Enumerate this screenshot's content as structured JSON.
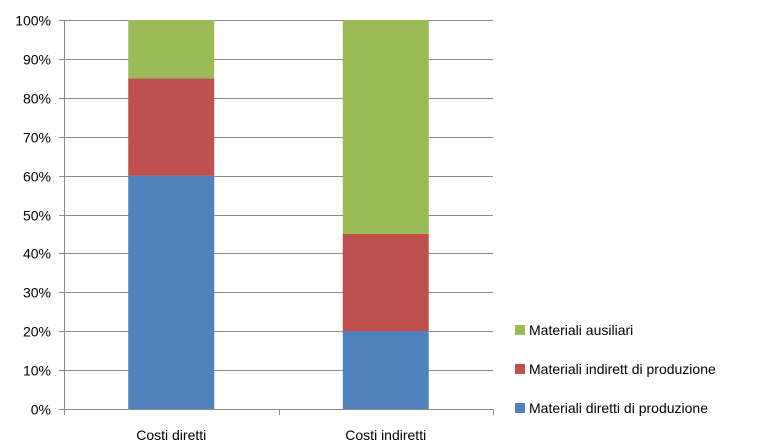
{
  "chart_data": {
    "type": "bar",
    "stacked": true,
    "categories": [
      "Costi diretti",
      "Costi indiretti"
    ],
    "series": [
      {
        "name": "Materiali diretti di produzione",
        "values": [
          60,
          20
        ],
        "color": "#4F81BD"
      },
      {
        "name": "Materiali indirett di produzione",
        "values": [
          25,
          25
        ],
        "color": "#C0504D"
      },
      {
        "name": "Materiali ausiliari",
        "values": [
          15,
          55
        ],
        "color": "#9BBB59"
      }
    ],
    "ylim": [
      0,
      100
    ],
    "yticks": [
      "0%",
      "10%",
      "20%",
      "30%",
      "40%",
      "50%",
      "60%",
      "70%",
      "80%",
      "90%",
      "100%"
    ],
    "grid": true,
    "legend_position": "right-bottom"
  }
}
